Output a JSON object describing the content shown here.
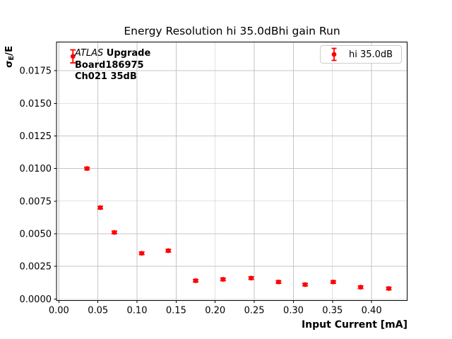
{
  "chart_data": {
    "type": "scatter",
    "title": "Energy Resolution hi 35.0dBhi gain Run",
    "xlabel": "Input Current [mA]",
    "ylabel": "σ_E/E",
    "ylabel_parts": {
      "sigma": "σ",
      "subscript": "E",
      "suffix": "/E"
    },
    "annotation": {
      "line1_italic": "ATLAS",
      "line1_bold": " Upgrade",
      "line2": "Board186975",
      "line3": "Ch021 35dB"
    },
    "legend": {
      "position": "upper right",
      "entries": [
        {
          "label": "hi 35.0dB",
          "color": "#ff0000",
          "marker": "circle-with-errorbar"
        }
      ]
    },
    "grid": true,
    "xlim": [
      -0.003,
      0.4455
    ],
    "ylim": [
      -0.00012,
      0.0197
    ],
    "xticks": {
      "values": [
        0.0,
        0.05,
        0.1,
        0.15,
        0.2,
        0.25,
        0.3,
        0.35,
        0.4
      ],
      "labels": [
        "0.00",
        "0.05",
        "0.10",
        "0.15",
        "0.20",
        "0.25",
        "0.30",
        "0.35",
        "0.40"
      ]
    },
    "yticks": {
      "values": [
        0.0,
        0.0025,
        0.005,
        0.0075,
        0.01,
        0.0125,
        0.015,
        0.0175
      ],
      "labels": [
        "0.0000",
        "0.0025",
        "0.0050",
        "0.0075",
        "0.0100",
        "0.0125",
        "0.0150",
        "0.0175"
      ]
    },
    "series": [
      {
        "name": "hi 35.0dB",
        "color": "#ff0000",
        "x": [
          0.018,
          0.036,
          0.053,
          0.071,
          0.106,
          0.14,
          0.175,
          0.21,
          0.246,
          0.281,
          0.315,
          0.351,
          0.386,
          0.422
        ],
        "y": [
          0.0186,
          0.01,
          0.007,
          0.0051,
          0.0035,
          0.0037,
          0.0014,
          0.0015,
          0.0016,
          0.0013,
          0.0011,
          0.0013,
          0.0009,
          0.0008
        ],
        "yerr": [
          0.0005,
          0.0001,
          0.0001,
          0.0001,
          0.0001,
          0.0001,
          0.0001,
          0.0001,
          0.0001,
          0.0001,
          0.0001,
          0.0001,
          0.0001,
          0.0001
        ]
      }
    ]
  },
  "colors": {
    "marker": "#ff0000",
    "grid": "#c6c6c6",
    "spine": "#000000",
    "background": "#ffffff",
    "legend_border": "#cccccc",
    "text": "#000000"
  }
}
